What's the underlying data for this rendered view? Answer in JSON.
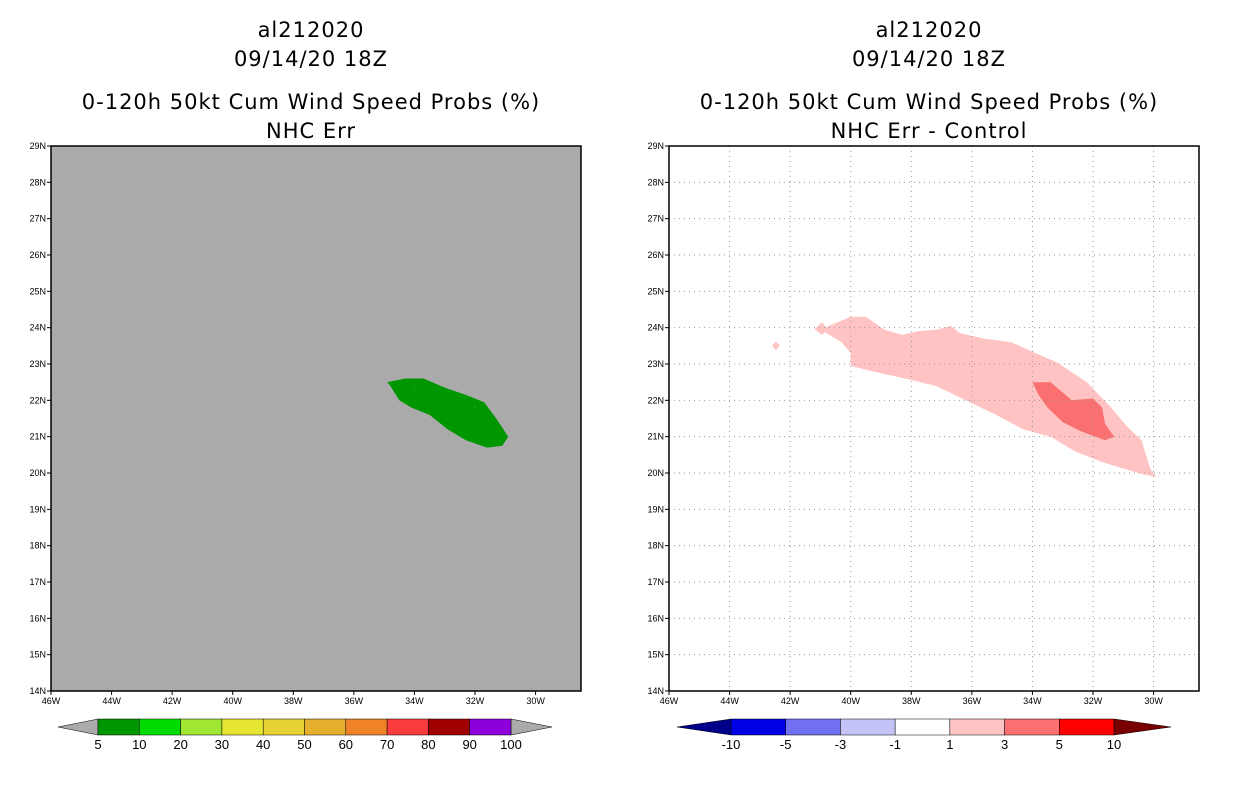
{
  "chart_data": [
    {
      "type": "heatmap",
      "title_lines": [
        "al212020",
        "09/14/20 18Z",
        "0-120h 50kt Cum Wind Speed Probs (%)",
        "NHC Err"
      ],
      "x_ticks": [
        "46W",
        "44W",
        "42W",
        "40W",
        "38W",
        "36W",
        "34W",
        "32W",
        "30W"
      ],
      "y_ticks": [
        "14N",
        "15N",
        "16N",
        "17N",
        "18N",
        "19N",
        "20N",
        "21N",
        "22N",
        "23N",
        "24N",
        "25N",
        "26N",
        "27N",
        "28N",
        "29N"
      ],
      "xlim": [
        -46,
        -28.5
      ],
      "ylim": [
        14,
        29
      ],
      "background_color": "#aaaaaa",
      "grid": false,
      "contours": [
        {
          "level": "5-10",
          "color": "#009600",
          "polygon": [
            [
              -34.9,
              22.5
            ],
            [
              -34.3,
              22.6
            ],
            [
              -33.7,
              22.6
            ],
            [
              -33.0,
              22.35
            ],
            [
              -32.3,
              22.15
            ],
            [
              -31.7,
              21.95
            ],
            [
              -31.3,
              21.5
            ],
            [
              -30.9,
              21.0
            ],
            [
              -31.1,
              20.75
            ],
            [
              -31.6,
              20.7
            ],
            [
              -32.3,
              20.9
            ],
            [
              -32.9,
              21.2
            ],
            [
              -33.5,
              21.6
            ],
            [
              -34.1,
              21.8
            ],
            [
              -34.5,
              22.0
            ],
            [
              -34.8,
              22.4
            ]
          ]
        }
      ],
      "colorbar": {
        "labels": [
          "5",
          "10",
          "20",
          "30",
          "40",
          "50",
          "60",
          "70",
          "80",
          "90",
          "100"
        ],
        "colors": [
          "#009600",
          "#00dc00",
          "#a0e632",
          "#e6e632",
          "#e6d232",
          "#e6af2d",
          "#f08228",
          "#fa3c3c",
          "#a00000",
          "#8c00dc"
        ],
        "under_color": "#aaaaaa",
        "over_color": "#aaaaaa"
      }
    },
    {
      "type": "heatmap",
      "title_lines": [
        "al212020",
        "09/14/20 18Z",
        "0-120h 50kt Cum Wind Speed Probs (%)",
        "NHC Err - Control"
      ],
      "x_ticks": [
        "46W",
        "44W",
        "42W",
        "40W",
        "38W",
        "36W",
        "34W",
        "32W",
        "30W"
      ],
      "y_ticks": [
        "14N",
        "15N",
        "16N",
        "17N",
        "18N",
        "19N",
        "20N",
        "21N",
        "22N",
        "23N",
        "24N",
        "25N",
        "26N",
        "27N",
        "28N",
        "29N"
      ],
      "xlim": [
        -46,
        -28.5
      ],
      "ylim": [
        14,
        29
      ],
      "background_color": "#ffffff",
      "grid": true,
      "contours": [
        {
          "level": "1 to 3",
          "color": "#ffc3c3",
          "polygon": [
            [
              -41.0,
              23.95
            ],
            [
              -40.0,
              24.3
            ],
            [
              -39.5,
              24.3
            ],
            [
              -38.9,
              23.95
            ],
            [
              -38.3,
              23.8
            ],
            [
              -37.8,
              23.9
            ],
            [
              -37.1,
              23.95
            ],
            [
              -36.7,
              24.05
            ],
            [
              -36.4,
              23.85
            ],
            [
              -35.6,
              23.7
            ],
            [
              -34.7,
              23.6
            ],
            [
              -33.9,
              23.3
            ],
            [
              -33.2,
              23.05
            ],
            [
              -32.2,
              22.5
            ],
            [
              -31.4,
              21.8
            ],
            [
              -30.9,
              21.3
            ],
            [
              -30.4,
              20.9
            ],
            [
              -30.1,
              20.1
            ],
            [
              -29.9,
              19.9
            ],
            [
              -30.3,
              19.95
            ],
            [
              -30.9,
              20.1
            ],
            [
              -31.7,
              20.3
            ],
            [
              -32.6,
              20.6
            ],
            [
              -33.4,
              21.0
            ],
            [
              -34.3,
              21.2
            ],
            [
              -35.2,
              21.6
            ],
            [
              -36.2,
              22.0
            ],
            [
              -37.2,
              22.4
            ],
            [
              -38.2,
              22.6
            ],
            [
              -39.3,
              22.8
            ],
            [
              -40.0,
              22.95
            ],
            [
              -40.0,
              23.3
            ],
            [
              -40.3,
              23.6
            ]
          ]
        },
        {
          "level": "1 to 3",
          "color": "#ffc3c3",
          "polygon": [
            [
              -41.2,
              23.95
            ],
            [
              -40.95,
              24.15
            ],
            [
              -40.75,
              23.95
            ],
            [
              -40.95,
              23.8
            ]
          ]
        },
        {
          "level": "1 to 3",
          "color": "#ffc3c3",
          "polygon": [
            [
              -42.6,
              23.5
            ],
            [
              -42.47,
              23.62
            ],
            [
              -42.34,
              23.5
            ],
            [
              -42.47,
              23.38
            ]
          ]
        },
        {
          "level": "3 to 5",
          "color": "#fa7070",
          "polygon": [
            [
              -34.0,
              22.5
            ],
            [
              -33.4,
              22.5
            ],
            [
              -32.7,
              22.0
            ],
            [
              -32.0,
              22.05
            ],
            [
              -31.7,
              21.8
            ],
            [
              -31.6,
              21.35
            ],
            [
              -31.3,
              21.0
            ],
            [
              -31.6,
              20.9
            ],
            [
              -32.4,
              21.15
            ],
            [
              -33.0,
              21.4
            ],
            [
              -33.5,
              21.8
            ],
            [
              -33.8,
              22.15
            ]
          ]
        }
      ],
      "colorbar": {
        "labels": [
          "-10",
          "-5",
          "-3",
          "-1",
          "1",
          "3",
          "5",
          "10"
        ],
        "colors": [
          "#0000e6",
          "#7070f0",
          "#c3c3f8",
          "#ffffff",
          "#ffc3c3",
          "#fa7070",
          "#ff0000"
        ],
        "under_color": "#00008b",
        "over_color": "#780000"
      }
    }
  ]
}
